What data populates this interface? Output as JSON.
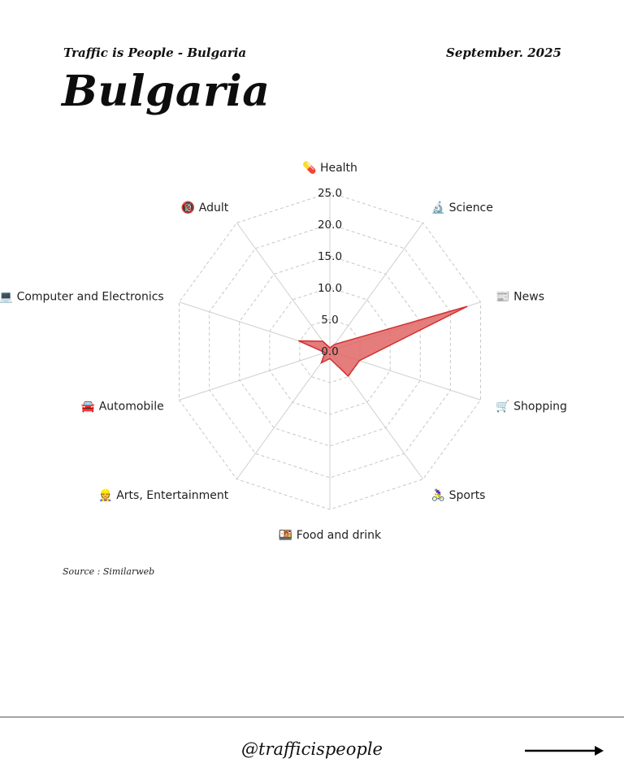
{
  "header": {
    "subtitle": "Traffic is People - Bulgaria",
    "date": "September. 2025",
    "title": "Bulgaria"
  },
  "source": "Source : Similarweb",
  "footer": {
    "handle": "@trafficispeople",
    "arrow_icon": "arrow-right-icon"
  },
  "colors": {
    "fill": "#e06666",
    "stroke": "#d32f2f",
    "grid": "#c8c8c8",
    "spoke": "#cfcfcf"
  },
  "chart_data": {
    "type": "radar",
    "title": "Bulgaria",
    "categories": [
      {
        "label": "Health",
        "icon": "💊"
      },
      {
        "label": "Science",
        "icon": "🔬"
      },
      {
        "label": "News",
        "icon": "📰"
      },
      {
        "label": "Shopping",
        "icon": "🛒"
      },
      {
        "label": "Sports",
        "icon": "🚴‍♀️"
      },
      {
        "label": "Food and drink",
        "icon": "🍱"
      },
      {
        "label": "Arts, Entertainment",
        "icon": "👷"
      },
      {
        "label": "Automobile",
        "icon": "🚘"
      },
      {
        "label": "Computer and Electronics",
        "icon": "💻"
      },
      {
        "label": "Adult",
        "icon": "🔞"
      }
    ],
    "series": [
      {
        "name": "Bulgaria",
        "values": [
          0.5,
          1.3,
          22.8,
          4.9,
          4.9,
          1.2,
          2.3,
          0.8,
          5.2,
          1.9
        ]
      }
    ],
    "rlim": [
      0,
      25
    ],
    "rticks": [
      "0.0",
      "5.0",
      "10.0",
      "15.0",
      "20.0",
      "25.0"
    ],
    "grid": true,
    "legend": "none",
    "source": "Similarweb"
  }
}
